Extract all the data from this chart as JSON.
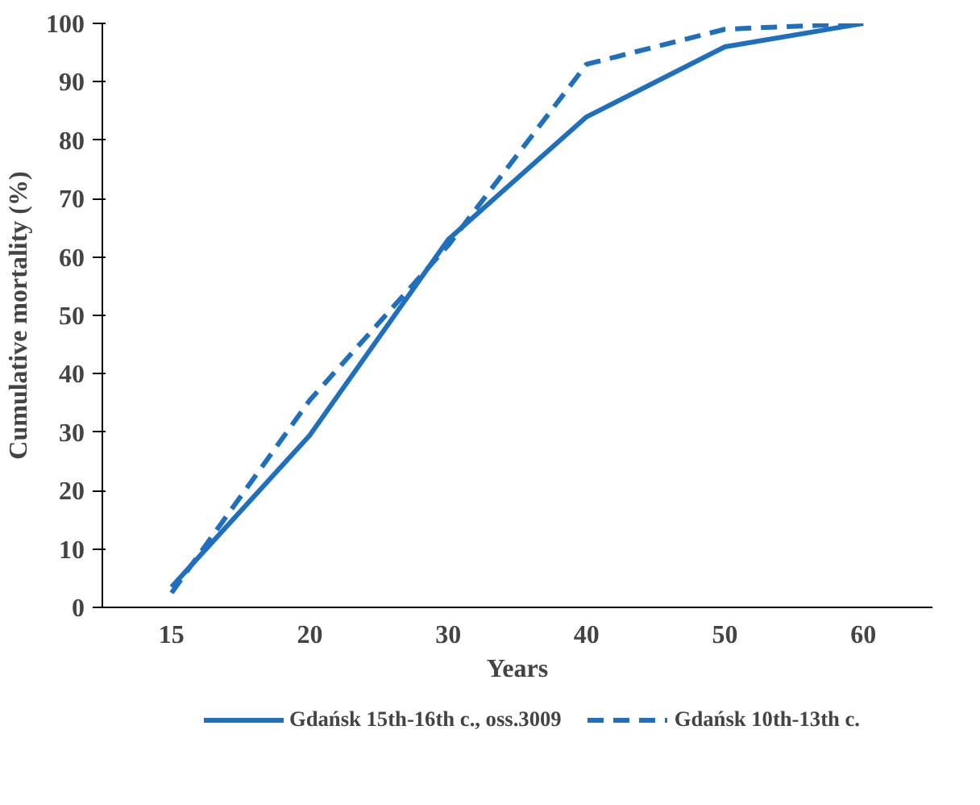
{
  "chart_data": {
    "type": "line",
    "xlabel": "Years",
    "ylabel": "Cumulative mortality (%)",
    "categories": [
      "15",
      "20",
      "30",
      "40",
      "50",
      "60"
    ],
    "series": [
      {
        "name": "Gdańsk 15th-16th c., oss.3009",
        "color": "#1f6fbf",
        "line_style": "solid",
        "values": [
          3.5,
          29.5,
          63,
          84,
          96,
          100
        ]
      },
      {
        "name": "Gdańsk 10th-13th c.",
        "color": "#1f6fbf",
        "line_style": "dashed",
        "values": [
          2.5,
          35.5,
          62,
          93,
          99,
          100
        ]
      }
    ],
    "ylim": [
      0,
      100
    ],
    "yticks": [
      0,
      10,
      20,
      30,
      40,
      50,
      60,
      70,
      80,
      90,
      100
    ],
    "grid": false,
    "legend": "bottom",
    "marker": "none"
  }
}
